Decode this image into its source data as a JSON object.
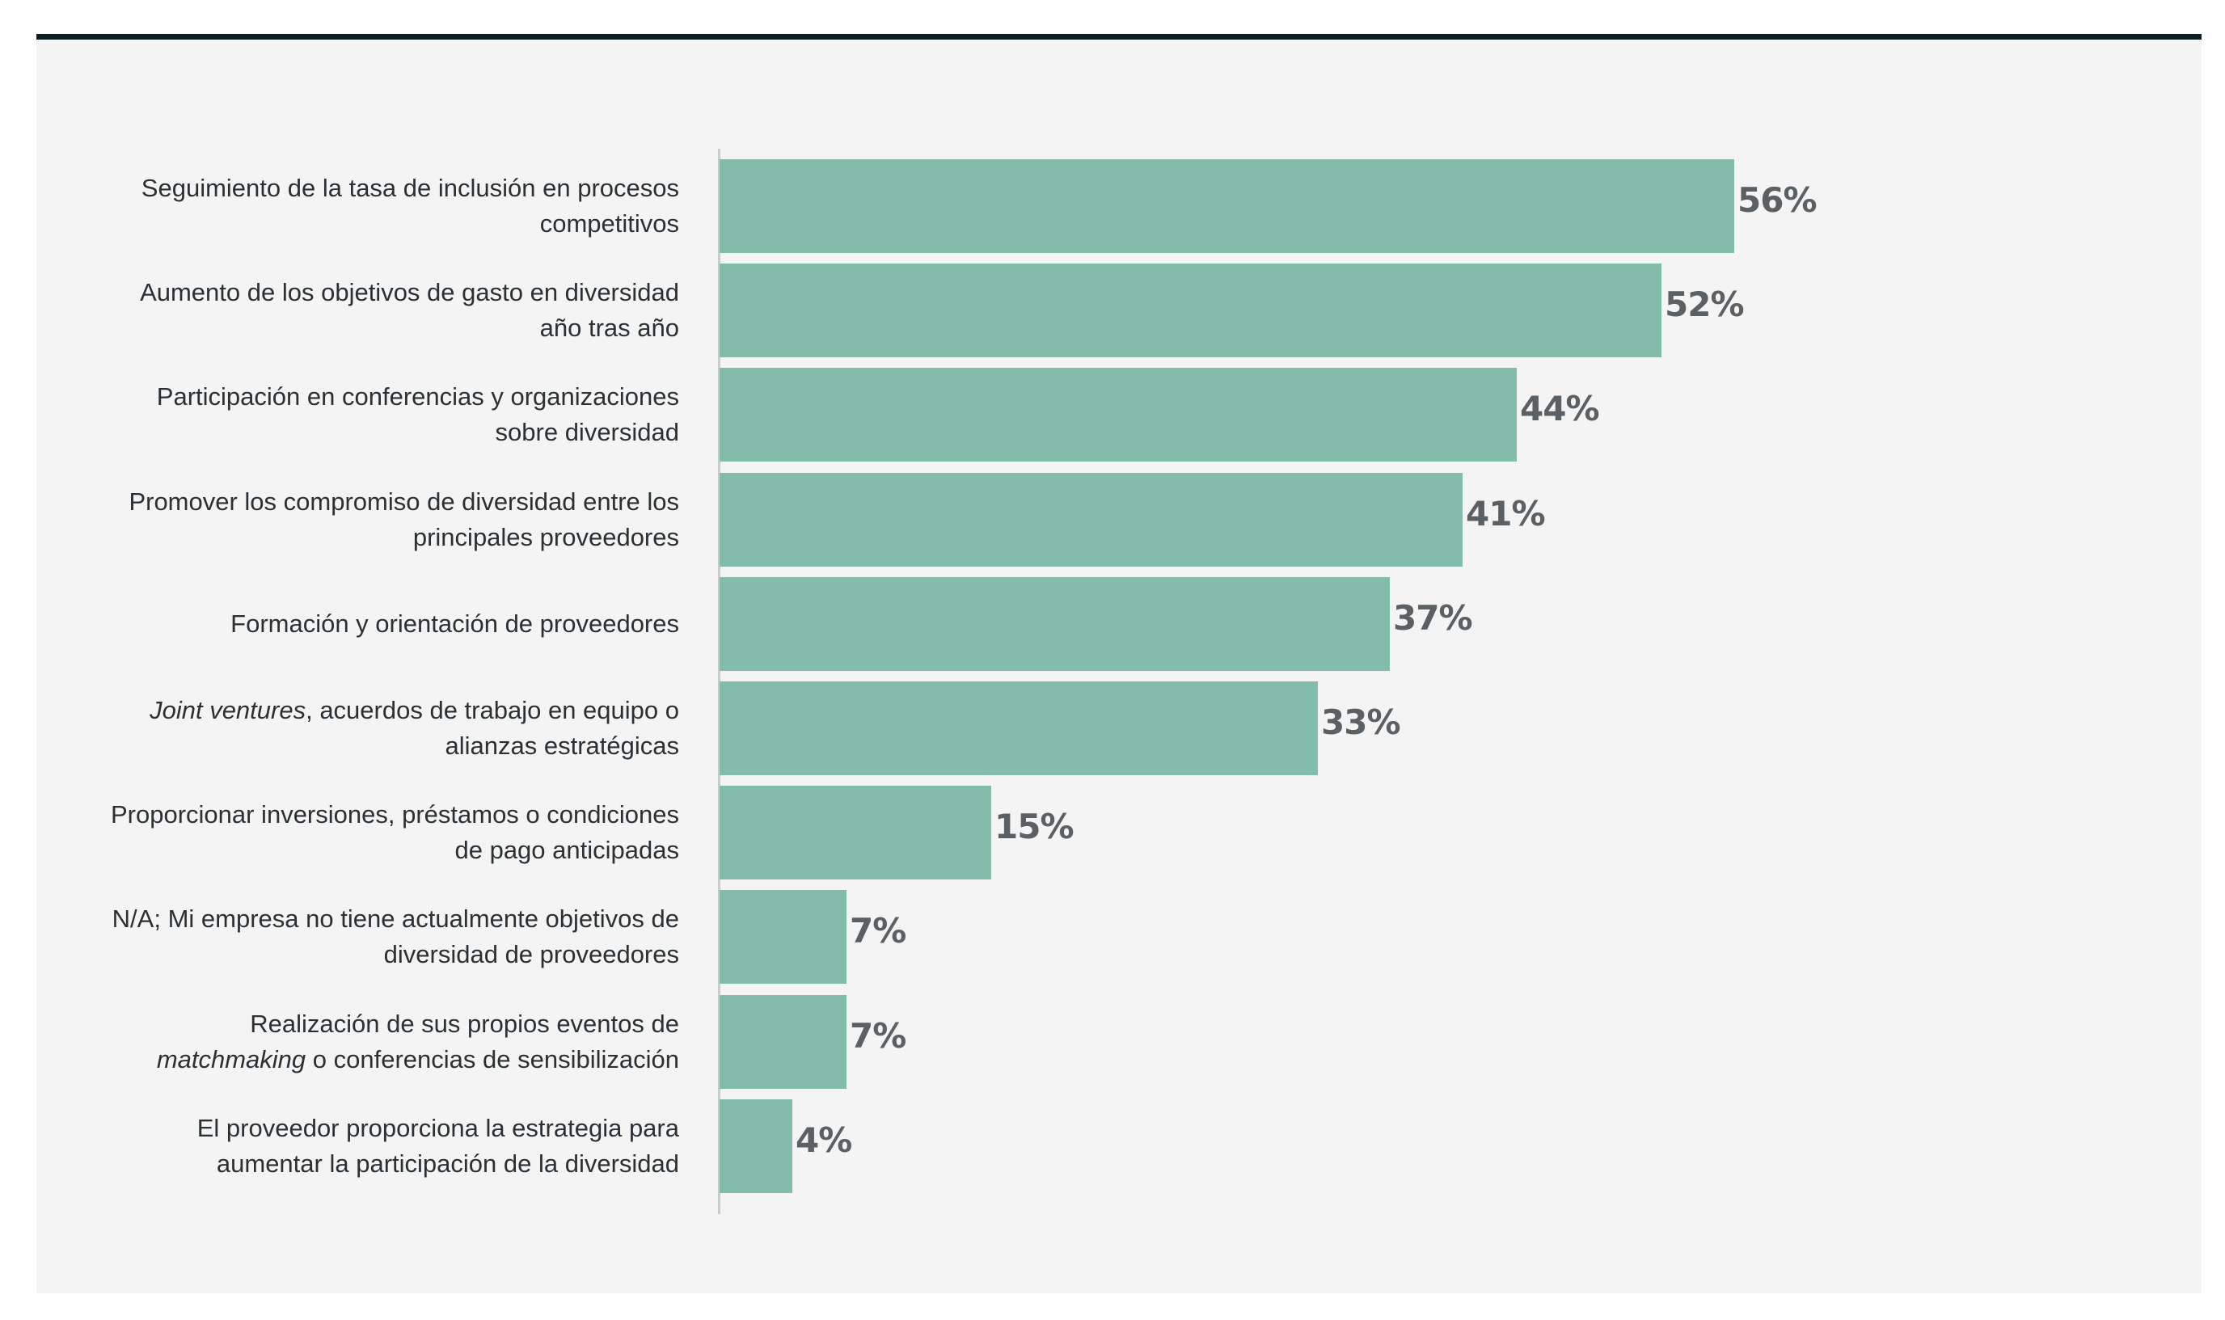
{
  "chart_data": {
    "type": "bar",
    "orientation": "horizontal",
    "title": "",
    "xlabel": "",
    "ylabel": "",
    "xlim": [
      0,
      56
    ],
    "grid": false,
    "colors": {
      "bar": "#84bcac",
      "frame": "#0e1e24",
      "background": "#f3f4f3"
    },
    "categories": [
      {
        "lines": [
          "Seguimiento de la tasa de inclusión en procesos",
          "competitivos"
        ],
        "italic": ""
      },
      {
        "lines": [
          "Aumento de los objetivos de gasto en diversidad",
          "año tras año"
        ],
        "italic": ""
      },
      {
        "lines": [
          "Participación en conferencias y organizaciones",
          "sobre diversidad"
        ],
        "italic": ""
      },
      {
        "lines": [
          "Promover los compromiso de diversidad entre los",
          "principales proveedores"
        ],
        "italic": ""
      },
      {
        "lines": [
          "Formación y orientación de proveedores"
        ],
        "italic": ""
      },
      {
        "lines": [
          "Joint ventures, acuerdos de trabajo en equipo o",
          "alianzas estratégicas"
        ],
        "italic": "Joint ventures"
      },
      {
        "lines": [
          "Proporcionar inversiones, préstamos o condiciones",
          "de pago anticipadas"
        ],
        "italic": ""
      },
      {
        "lines": [
          "N/A; Mi empresa no tiene actualmente objetivos de",
          "diversidad de proveedores"
        ],
        "italic": ""
      },
      {
        "lines": [
          "Realización de sus propios eventos de",
          "matchmaking o conferencias de sensibilización"
        ],
        "italic": "matchmaking"
      },
      {
        "lines": [
          "El proveedor proporciona la estrategia para",
          "aumentar la participación de la diversidad"
        ],
        "italic": ""
      }
    ],
    "values": [
      56,
      52,
      44,
      41,
      37,
      33,
      15,
      7,
      7,
      4
    ],
    "value_labels": [
      "56%",
      "52%",
      "44%",
      "41%",
      "37%",
      "33%",
      "15%",
      "7%",
      "7%",
      "4%"
    ]
  }
}
